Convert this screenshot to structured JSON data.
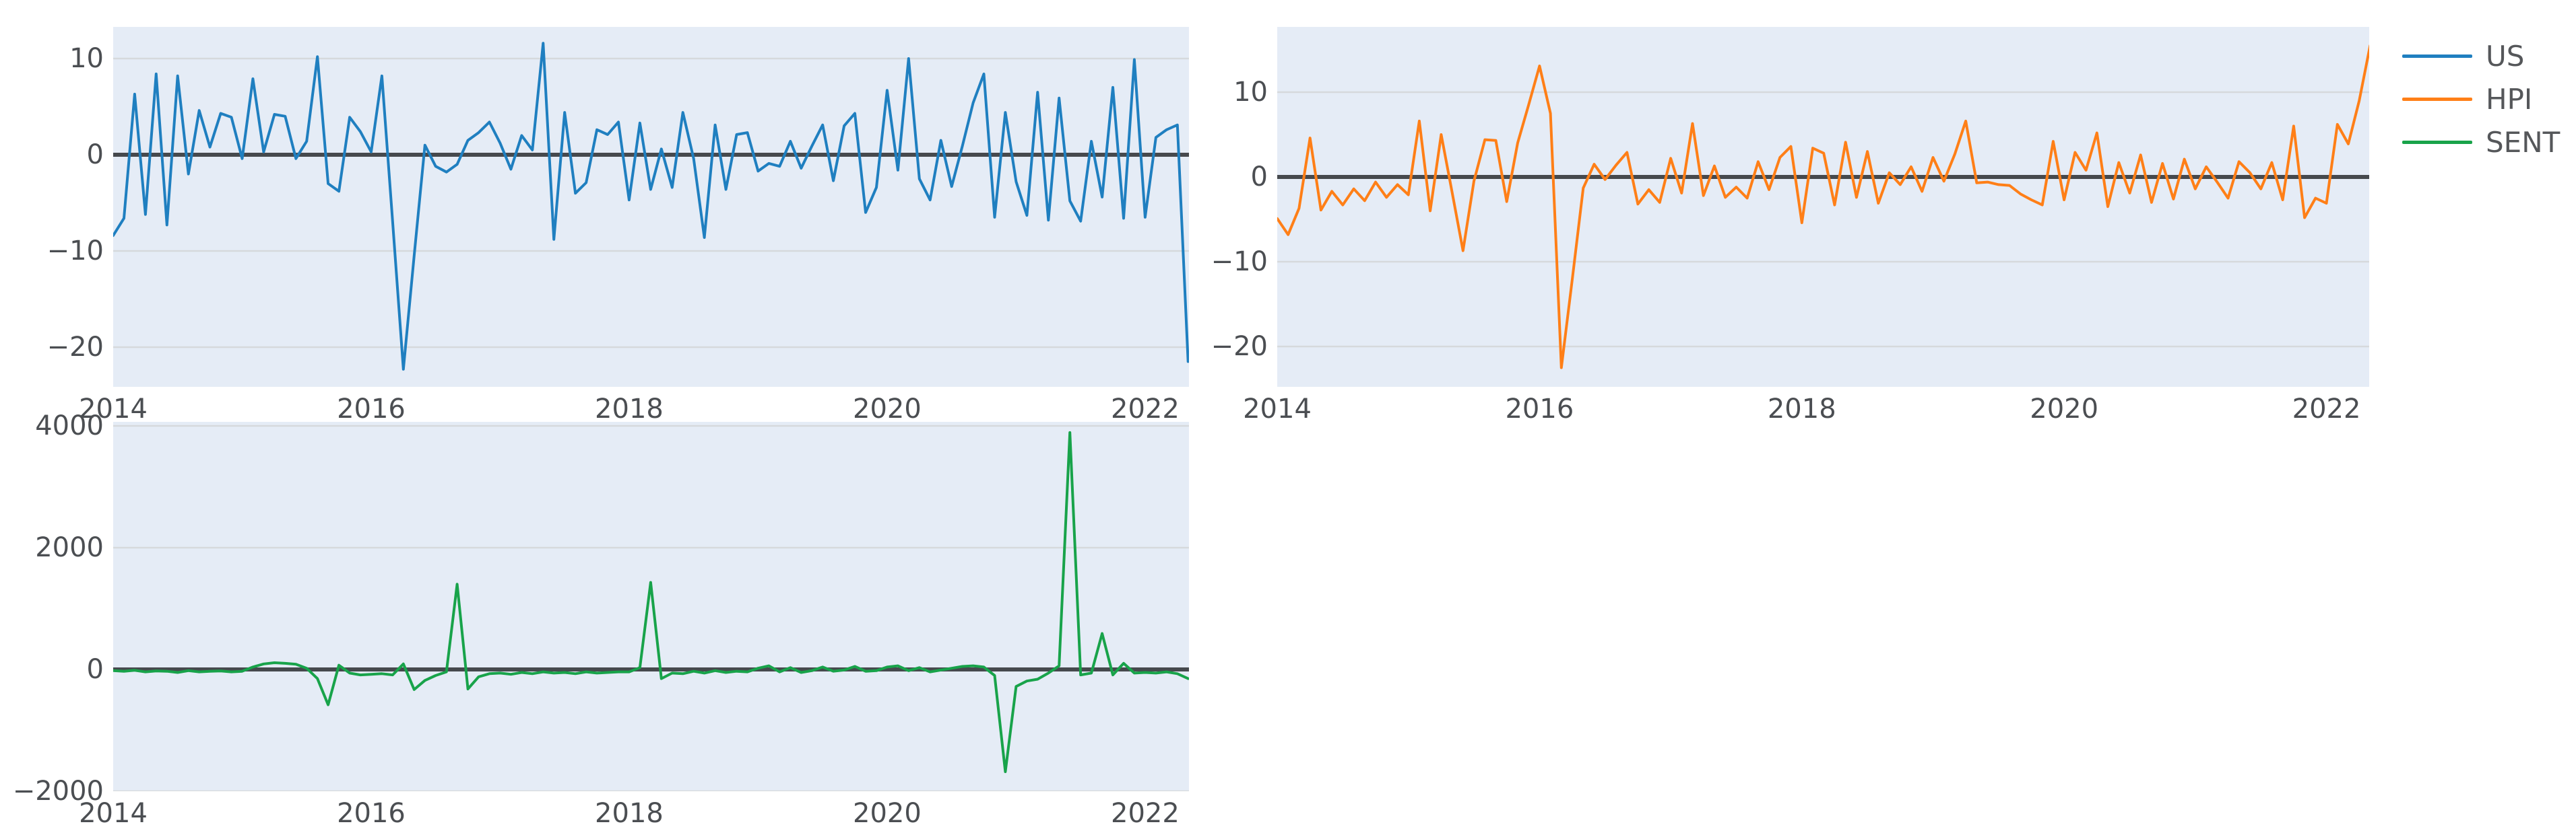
{
  "style": {
    "page_background": "#ffffff",
    "plot_background": "#e5ecf6",
    "grid_color": "#d6d9dc",
    "zero_line_color": "#46494d",
    "tick_label_color": "#4b4e52",
    "legend_text_color": "#55575a"
  },
  "legend": {
    "position": "top-right",
    "items": [
      {
        "label": "US",
        "color": "#1f7fc0"
      },
      {
        "label": "HPI",
        "color": "#ff7f17"
      },
      {
        "label": "SENT",
        "color": "#18a34a"
      }
    ]
  },
  "chart_data": [
    {
      "type": "line",
      "name": "us",
      "series_name": "US",
      "color": "#1f7fc0",
      "frequency": "monthly",
      "x_start": 2014.0,
      "x_step": 0.0833333,
      "x_range": [
        2014.0,
        2022.34
      ],
      "y_range": [
        -24.13,
        13.29
      ],
      "grid": true,
      "zero_line": true,
      "legend_position": "right",
      "x_ticks": [
        {
          "v": 2014,
          "label": "2014"
        },
        {
          "v": 2016,
          "label": "2016"
        },
        {
          "v": 2018,
          "label": "2018"
        },
        {
          "v": 2020,
          "label": "2020"
        },
        {
          "v": 2022,
          "label": "2022"
        }
      ],
      "y_ticks": [
        {
          "v": 10,
          "label": "10"
        },
        {
          "v": 0,
          "label": "0"
        },
        {
          "v": -10,
          "label": "−10"
        },
        {
          "v": -20,
          "label": "−20"
        }
      ],
      "values": [
        -8.4,
        -6.6,
        6.3,
        -6.2,
        8.4,
        -7.3,
        8.2,
        -2.0,
        4.6,
        0.8,
        4.3,
        3.9,
        -0.4,
        7.9,
        0.3,
        4.2,
        4.0,
        -0.4,
        1.4,
        10.2,
        -3.0,
        -3.8,
        3.9,
        2.4,
        0.3,
        8.2,
        -7.0,
        -22.3,
        -10.5,
        1.0,
        -1.2,
        -1.8,
        -1.0,
        1.5,
        2.3,
        3.4,
        1.2,
        -1.5,
        2.0,
        0.5,
        11.6,
        -8.8,
        4.4,
        -4.0,
        -2.9,
        2.6,
        2.1,
        3.4,
        -4.7,
        3.3,
        -3.6,
        0.6,
        -3.4,
        4.4,
        -0.4,
        -8.6,
        3.1,
        -3.6,
        2.1,
        2.3,
        -1.7,
        -0.9,
        -1.2,
        1.4,
        -1.4,
        0.9,
        3.1,
        -2.7,
        3.0,
        4.3,
        -6.0,
        -3.4,
        6.7,
        -1.6,
        10.0,
        -2.5,
        -4.7,
        1.5,
        -3.3,
        0.9,
        5.4,
        8.4,
        -6.5,
        4.4,
        -2.8,
        -6.3,
        6.5,
        -6.8,
        5.9,
        -4.8,
        -6.9,
        1.4,
        -4.4,
        7.0,
        -6.6,
        9.9,
        -6.5,
        1.8,
        2.6,
        3.1,
        -21.5
      ]
    },
    {
      "type": "line",
      "name": "hpi",
      "series_name": "HPI",
      "color": "#ff7f17",
      "frequency": "monthly",
      "x_start": 2014.0,
      "x_step": 0.0833333,
      "x_range": [
        2014.0,
        2022.326
      ],
      "y_range": [
        -24.76,
        17.7
      ],
      "grid": true,
      "zero_line": true,
      "legend_position": "right",
      "x_ticks": [
        {
          "v": 2014,
          "label": "2014"
        },
        {
          "v": 2016,
          "label": "2016"
        },
        {
          "v": 2018,
          "label": "2018"
        },
        {
          "v": 2020,
          "label": "2020"
        },
        {
          "v": 2022,
          "label": "2022"
        }
      ],
      "y_ticks": [
        {
          "v": 10,
          "label": "10"
        },
        {
          "v": 0,
          "label": "0"
        },
        {
          "v": -10,
          "label": "−10"
        },
        {
          "v": -20,
          "label": "−20"
        }
      ],
      "values": [
        -4.9,
        -6.8,
        -3.7,
        4.6,
        -3.9,
        -1.7,
        -3.3,
        -1.4,
        -2.8,
        -0.6,
        -2.4,
        -0.9,
        -2.1,
        6.6,
        -4.0,
        5.0,
        -1.8,
        -8.7,
        -0.5,
        4.4,
        4.3,
        -2.9,
        4.0,
        8.5,
        13.1,
        7.5,
        -22.5,
        -12.0,
        -1.3,
        1.5,
        -0.3,
        1.4,
        2.9,
        -3.2,
        -1.5,
        -3.0,
        2.2,
        -1.9,
        6.3,
        -2.2,
        1.3,
        -2.4,
        -1.2,
        -2.5,
        1.8,
        -1.5,
        2.3,
        3.6,
        -5.4,
        3.4,
        2.8,
        -3.3,
        4.1,
        -2.4,
        3.0,
        -3.1,
        0.5,
        -0.9,
        1.2,
        -1.7,
        2.3,
        -0.5,
        2.7,
        6.6,
        -0.7,
        -0.6,
        -0.9,
        -1.0,
        -2.0,
        -2.7,
        -3.3,
        4.2,
        -2.7,
        2.9,
        0.8,
        5.2,
        -3.5,
        1.7,
        -1.9,
        2.6,
        -3.0,
        1.6,
        -2.6,
        2.1,
        -1.4,
        1.2,
        -0.6,
        -2.5,
        1.8,
        0.5,
        -1.4,
        1.7,
        -2.7,
        6.0,
        -4.8,
        -2.5,
        -3.1,
        6.2,
        3.9,
        9.0,
        15.5
      ]
    },
    {
      "type": "line",
      "name": "sent",
      "series_name": "SENT",
      "color": "#18a34a",
      "frequency": "monthly",
      "x_start": 2014.0,
      "x_step": 0.0833333,
      "x_range": [
        2014.0,
        2022.34
      ],
      "y_range": [
        -2000,
        4066
      ],
      "grid": true,
      "zero_line": true,
      "legend_position": "right",
      "x_ticks": [
        {
          "v": 2014,
          "label": "2014"
        },
        {
          "v": 2016,
          "label": "2016"
        },
        {
          "v": 2018,
          "label": "2018"
        },
        {
          "v": 2020,
          "label": "2020"
        },
        {
          "v": 2022,
          "label": "2022"
        }
      ],
      "y_ticks": [
        {
          "v": 4000,
          "label": "4000"
        },
        {
          "v": 2000,
          "label": "2000"
        },
        {
          "v": 0,
          "label": "0"
        },
        {
          "v": -2000,
          "label": "−2000"
        }
      ],
      "values": [
        -20,
        -30,
        -15,
        -40,
        -25,
        -30,
        -50,
        -20,
        -40,
        -30,
        -25,
        -40,
        -30,
        40,
        90,
        110,
        100,
        85,
        20,
        -150,
        -580,
        70,
        -60,
        -90,
        -80,
        -70,
        -90,
        90,
        -330,
        -180,
        -100,
        -40,
        1400,
        -320,
        -120,
        -70,
        -60,
        -80,
        -50,
        -70,
        -40,
        -60,
        -50,
        -70,
        -40,
        -60,
        -50,
        -40,
        -40,
        30,
        1430,
        -150,
        -60,
        -70,
        -30,
        -60,
        -20,
        -50,
        -30,
        -40,
        20,
        60,
        -40,
        30,
        -50,
        -20,
        40,
        -30,
        -10,
        50,
        -30,
        -20,
        40,
        60,
        -20,
        30,
        -40,
        -10,
        20,
        50,
        60,
        40,
        -100,
        -1680,
        -280,
        -190,
        -160,
        -60,
        60,
        3890,
        -90,
        -60,
        590,
        -90,
        100,
        -60,
        -50,
        -60,
        -40,
        -70,
        -150
      ]
    }
  ]
}
